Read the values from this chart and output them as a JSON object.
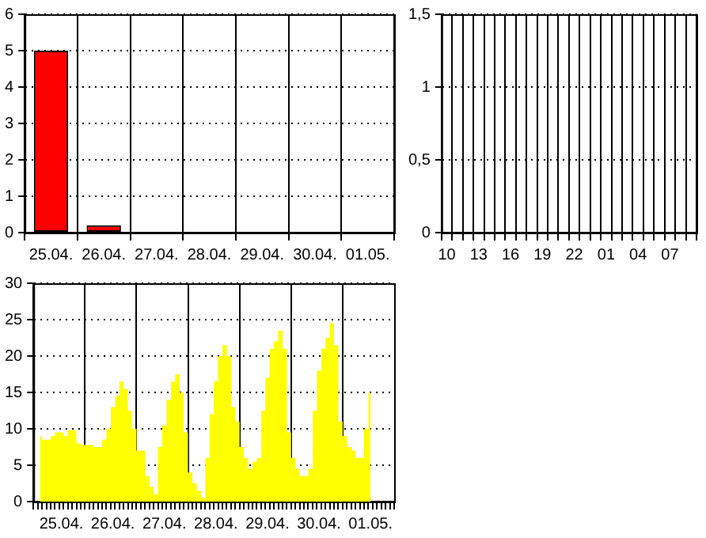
{
  "chart_data": [
    {
      "type": "bar",
      "categories": [
        "25.04.",
        "26.04.",
        "27.04.",
        "28.04.",
        "29.04.",
        "30.04.",
        "01.05."
      ],
      "values": [
        5,
        0.2,
        null,
        null,
        null,
        null,
        null
      ],
      "color": "#ff0000",
      "ylim": [
        0,
        6
      ],
      "yticks": [
        0,
        1,
        2,
        3,
        4,
        5,
        6
      ],
      "grid": true
    },
    {
      "type": "bar",
      "categories": [
        "10",
        null,
        null,
        "13",
        null,
        null,
        "16",
        null,
        null,
        "19",
        null,
        null,
        "22",
        null,
        null,
        "01",
        null,
        null,
        "04",
        null,
        null,
        "07",
        null,
        null
      ],
      "values": [
        0,
        0,
        0,
        0,
        0,
        0,
        0,
        0,
        0,
        0,
        0,
        0,
        0,
        0,
        0,
        0,
        0,
        0,
        0,
        0,
        0,
        0,
        0,
        0
      ],
      "color": "#ff0000",
      "ylim": [
        0,
        1.5
      ],
      "yticks": [
        0,
        {
          "value": 0.5,
          "label": "0,5"
        },
        1,
        {
          "value": 1.5,
          "label": "1,5"
        }
      ],
      "grid": true
    },
    {
      "type": "area",
      "categories": [
        null,
        null,
        null,
        null,
        null,
        null,
        "25.04.",
        null,
        null,
        null,
        null,
        null,
        null,
        null,
        null,
        null,
        null,
        null,
        "26.04.",
        null,
        null,
        null,
        null,
        null,
        null,
        null,
        null,
        null,
        null,
        null,
        "27.04.",
        null,
        null,
        null,
        null,
        null,
        null,
        null,
        null,
        null,
        null,
        null,
        "28.04.",
        null,
        null,
        null,
        null,
        null,
        null,
        null,
        null,
        null,
        null,
        null,
        "29.04.",
        null,
        null,
        null,
        null,
        null,
        null,
        null,
        null,
        null,
        null,
        null,
        "30.04.",
        null,
        null,
        null,
        null,
        null,
        null,
        null,
        null,
        null,
        null,
        null,
        "01.05.",
        null,
        null,
        null,
        null,
        null
      ],
      "values": [
        null,
        9,
        8.5,
        8.5,
        9,
        9.5,
        9.5,
        9,
        9.8,
        9.8,
        8,
        7.8,
        7.8,
        7.8,
        7.5,
        7.5,
        8.5,
        10,
        13,
        14.5,
        16.5,
        15.5,
        12.5,
        10,
        7,
        7,
        3.5,
        2,
        1,
        7.5,
        10.5,
        14,
        16.5,
        17.5,
        15,
        9.5,
        4,
        2.5,
        1.5,
        0.5,
        6,
        12,
        16.5,
        20,
        21.5,
        20,
        13,
        11,
        7.5,
        6,
        4.5,
        5.5,
        6,
        12.5,
        17,
        21,
        22,
        23.5,
        21,
        9.5,
        6,
        4.5,
        3.5,
        3.5,
        4.5,
        12.5,
        18,
        21,
        22.5,
        24.5,
        21.5,
        11,
        9,
        7.5,
        7,
        6,
        6,
        10,
        15,
        null,
        null,
        null,
        null,
        null
      ],
      "color": "#ffff00",
      "ylim": [
        0,
        30
      ],
      "yticks": [
        0,
        5,
        10,
        15,
        20,
        25,
        30
      ],
      "grid": true
    }
  ]
}
